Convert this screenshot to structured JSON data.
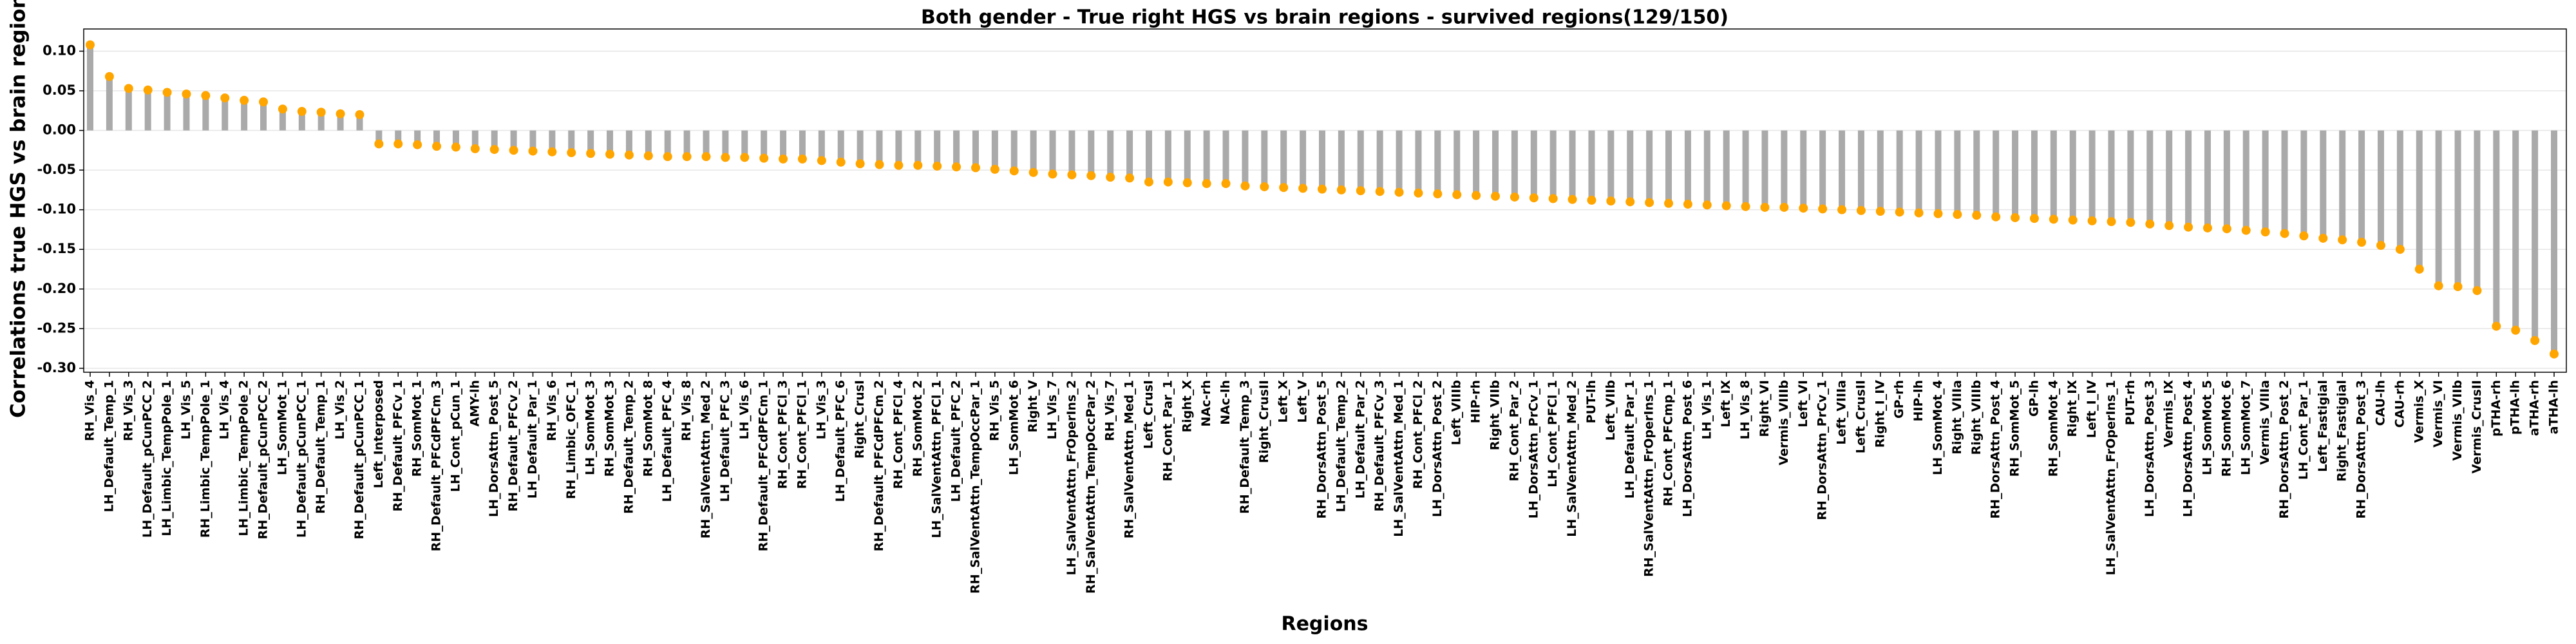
{
  "chart_data": {
    "type": "lollipop",
    "title": "Both gender - True right HGS vs brain regions - survived regions(129/150)",
    "x_label": "Regions",
    "y_label": "Correlations true HGS vs brain regions",
    "bar_color": "#aaaaaa",
    "marker_color": "#ffa500",
    "grid": true,
    "ylim": [
      -0.305,
      0.128
    ],
    "yticks": [
      {
        "value": 0.1,
        "label": "0.10"
      },
      0.05,
      {
        "value": 0,
        "label": "0.00"
      },
      -0.05,
      {
        "value": -0.1,
        "label": "-0.10"
      },
      -0.15,
      {
        "value": -0.2,
        "label": "-0.20"
      },
      -0.25,
      {
        "value": -0.3,
        "label": "-0.30"
      }
    ],
    "categories": [
      "RH_Vis_4",
      "LH_Default_Temp_1",
      "RH_Vis_3",
      "LH_Default_pCunPCC_2",
      "LH_Limbic_TempPole_1",
      "LH_Vis_5",
      "RH_Limbic_TempPole_1",
      "LH_Vis_4",
      "LH_Limbic_TempPole_2",
      "RH_Default_pCunPCC_2",
      "LH_SomMot_1",
      "LH_Default_pCunPCC_1",
      "RH_Default_Temp_1",
      "LH_Vis_2",
      "RH_Default_pCunPCC_1",
      "Left_Interposed",
      "RH_Default_PFCv_1",
      "RH_SomMot_1",
      "RH_Default_PFCdPFCm_3",
      "LH_Cont_pCun_1",
      "AMY-lh",
      "LH_DorsAttn_Post_5",
      "RH_Default_PFCv_2",
      "LH_Default_Par_1",
      "RH_Vis_6",
      "RH_Limbic_OFC_1",
      "LH_SomMot_3",
      "RH_SomMot_3",
      "RH_Default_Temp_2",
      "RH_SomMot_8",
      "LH_Default_PFC_4",
      "RH_Vis_8",
      "RH_SalVentAttn_Med_2",
      "LH_Default_PFC_3",
      "LH_Vis_6",
      "RH_Default_PFCdPFCm_1",
      "RH_Cont_PFCl_3",
      "RH_Cont_PFCl_1",
      "LH_Vis_3",
      "LH_Default_PFC_6",
      "Right_CrusI",
      "RH_Default_PFCdPFCm_2",
      "RH_Cont_PFCl_4",
      "RH_SomMot_2",
      "LH_SalVentAttn_PFCl_1",
      "LH_Default_PFC_2",
      "RH_SalVentAttn_TempOccPar_1",
      "RH_Vis_5",
      "LH_SomMot_6",
      "Right_V",
      "LH_Vis_7",
      "LH_SalVentAttn_FrOperIns_2",
      "RH_SalVentAttn_TempOccPar_2",
      "RH_Vis_7",
      "RH_SalVentAttn_Med_1",
      "Left_CrusI",
      "RH_Cont_Par_1",
      "Right_X",
      "NAc-rh",
      "NAc-lh",
      "RH_Default_Temp_3",
      "Right_CrusII",
      "Left_X",
      "Left_V",
      "RH_DorsAttn_Post_5",
      "LH_Default_Temp_2",
      "LH_Default_Par_2",
      "RH_Default_PFCv_3",
      "LH_SalVentAttn_Med_1",
      "RH_Cont_PFCl_2",
      "LH_DorsAttn_Post_2",
      "Left_VIIIb",
      "HIP-rh",
      "Right_VIIb",
      "RH_Cont_Par_2",
      "LH_DorsAttn_PrCv_1",
      "LH_Cont_PFCl_1",
      "LH_SalVentAttn_Med_2",
      "PUT-lh",
      "Left_VIIb",
      "LH_Default_Par_1",
      "RH_SalVentAttn_FrOperIns_1",
      "RH_Cont_PFCmp_1",
      "LH_DorsAttn_Post_6",
      "LH_Vis_1",
      "Left_IX",
      "LH_Vis_8",
      "Right_VI",
      "Vermis_VIIIb",
      "Left_VI",
      "RH_DorsAttn_PrCv_1",
      "Left_VIIIa",
      "Left_CrusII",
      "Right_I_IV",
      "GP-rh",
      "HIP-lh",
      "LH_SomMot_4",
      "Right_VIIIa",
      "Right_VIIIb",
      "RH_DorsAttn_Post_4",
      "RH_SomMot_5",
      "GP-lh",
      "RH_SomMot_4",
      "Right_IX",
      "Left_I_IV",
      "LH_SalVentAttn_FrOperIns_1",
      "PUT-rh",
      "LH_DorsAttn_Post_3",
      "Vermis_IX",
      "LH_DorsAttn_Post_4",
      "LH_SomMot_5",
      "RH_SomMot_6",
      "LH_SomMot_7",
      "Vermis_VIIIa",
      "RH_DorsAttn_Post_2",
      "LH_Cont_Par_1",
      "Left_Fastigial",
      "Right_Fastigial",
      "RH_DorsAttn_Post_3",
      "CAU-lh",
      "CAU-rh",
      "Vermis_X",
      "Vermis_VI",
      "Vermis_VIIb",
      "Vermis_CrusII",
      "pTHA-rh",
      "pTHA-lh",
      "aTHA-rh",
      "aTHA-lh"
    ],
    "values": [
      0.108,
      0.068,
      0.053,
      0.051,
      0.048,
      0.046,
      0.044,
      0.041,
      0.038,
      0.036,
      0.027,
      0.024,
      0.023,
      0.021,
      0.02,
      -0.017,
      -0.017,
      -0.018,
      -0.02,
      -0.021,
      -0.023,
      -0.024,
      -0.025,
      -0.026,
      -0.027,
      -0.028,
      -0.029,
      -0.03,
      -0.031,
      -0.032,
      -0.033,
      -0.033,
      -0.033,
      -0.034,
      -0.034,
      -0.035,
      -0.036,
      -0.036,
      -0.038,
      -0.04,
      -0.042,
      -0.043,
      -0.044,
      -0.044,
      -0.045,
      -0.046,
      -0.047,
      -0.049,
      -0.051,
      -0.053,
      -0.055,
      -0.056,
      -0.057,
      -0.059,
      -0.06,
      -0.065,
      -0.065,
      -0.066,
      -0.067,
      -0.067,
      -0.07,
      -0.071,
      -0.072,
      -0.073,
      -0.074,
      -0.075,
      -0.076,
      -0.077,
      -0.078,
      -0.079,
      -0.08,
      -0.081,
      -0.082,
      -0.083,
      -0.084,
      -0.085,
      -0.086,
      -0.087,
      -0.088,
      -0.089,
      -0.09,
      -0.091,
      -0.092,
      -0.093,
      -0.094,
      -0.095,
      -0.096,
      -0.097,
      -0.097,
      -0.098,
      -0.099,
      -0.1,
      -0.101,
      -0.102,
      -0.103,
      -0.104,
      -0.105,
      -0.106,
      -0.107,
      -0.109,
      -0.11,
      -0.111,
      -0.112,
      -0.113,
      -0.114,
      -0.115,
      -0.116,
      -0.118,
      -0.12,
      -0.122,
      -0.123,
      -0.124,
      -0.126,
      -0.128,
      -0.13,
      -0.133,
      -0.136,
      -0.138,
      -0.141,
      -0.145,
      -0.15,
      -0.175,
      -0.196,
      -0.197,
      -0.202,
      -0.247,
      -0.252,
      -0.265,
      -0.282
    ]
  }
}
